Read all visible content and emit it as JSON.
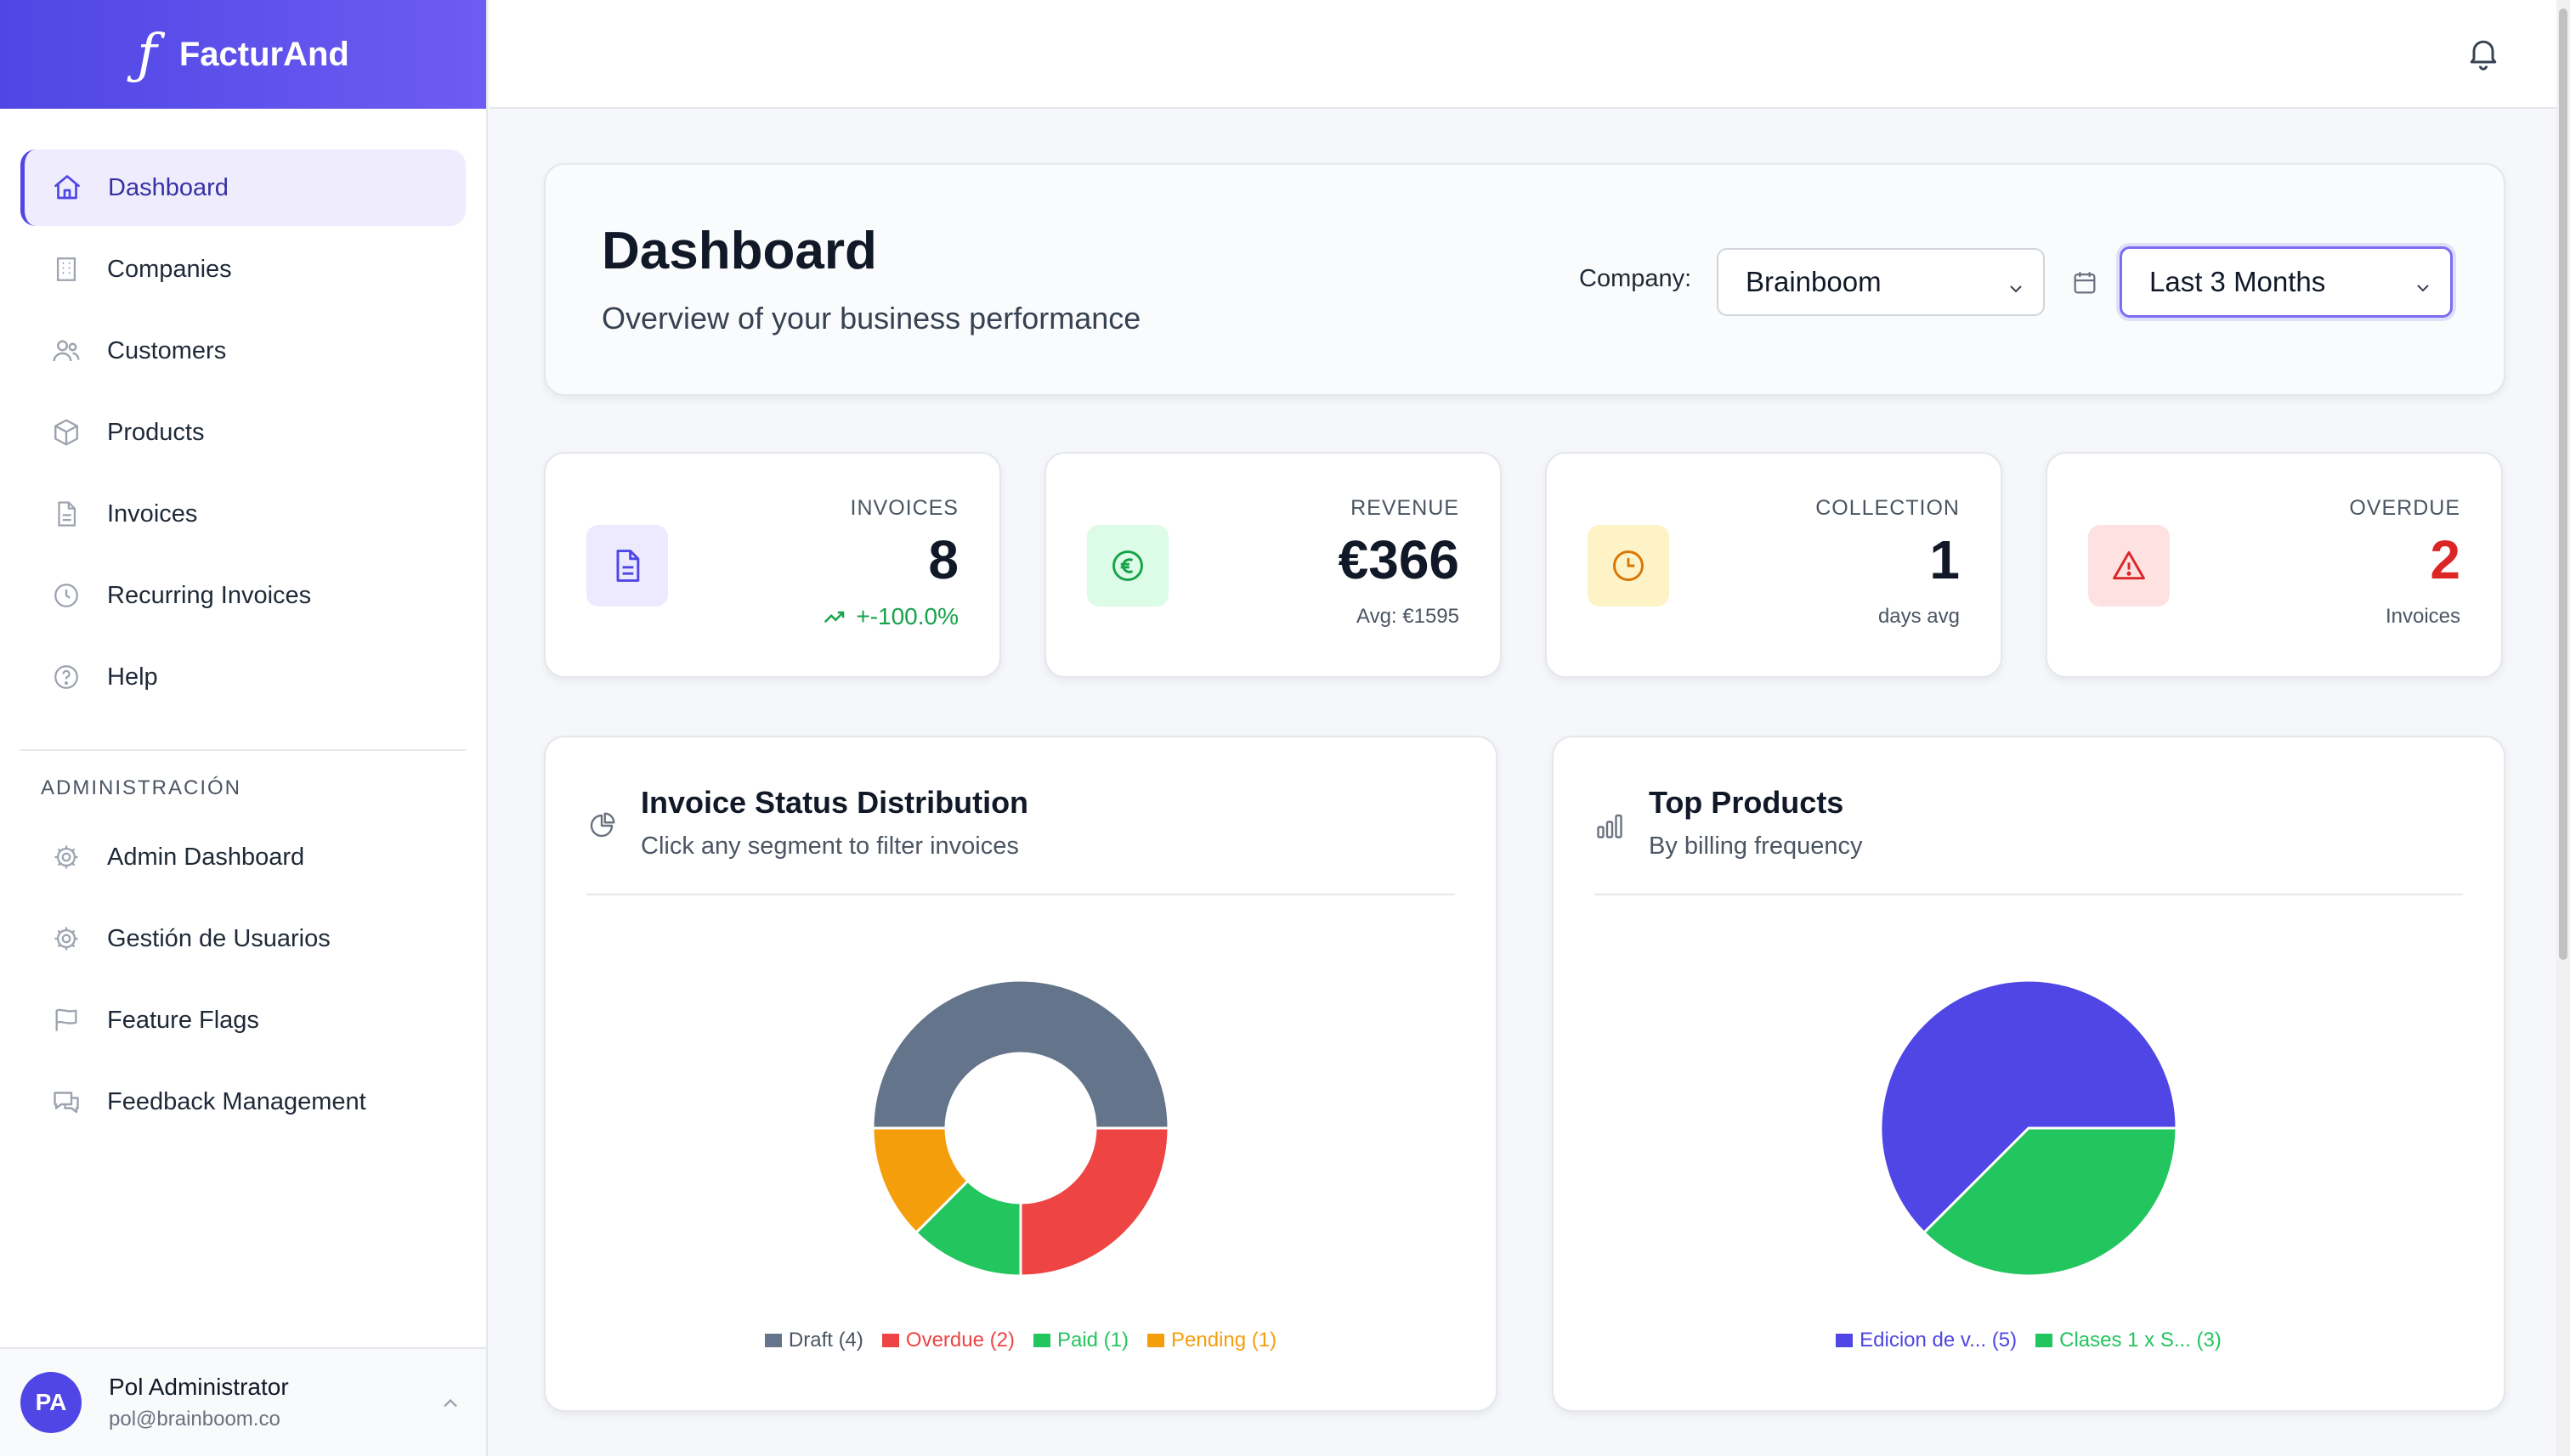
{
  "app": {
    "name": "FacturAnd"
  },
  "sidebar": {
    "items": [
      {
        "label": "Dashboard",
        "icon": "home-icon",
        "active": true
      },
      {
        "label": "Companies",
        "icon": "building-icon"
      },
      {
        "label": "Customers",
        "icon": "users-icon"
      },
      {
        "label": "Products",
        "icon": "box-icon"
      },
      {
        "label": "Invoices",
        "icon": "file-icon"
      },
      {
        "label": "Recurring Invoices",
        "icon": "clock-icon"
      },
      {
        "label": "Help",
        "icon": "help-circle-icon"
      }
    ],
    "admin_section": "ADMINISTRACIÓN",
    "admin_items": [
      {
        "label": "Admin Dashboard",
        "icon": "gear-icon"
      },
      {
        "label": "Gestión de Usuarios",
        "icon": "gear-icon"
      },
      {
        "label": "Feature Flags",
        "icon": "flag-icon"
      },
      {
        "label": "Feedback Management",
        "icon": "chat-icon"
      }
    ],
    "user": {
      "initials": "PA",
      "name": "Pol Administrator",
      "email": "pol@brainboom.co"
    }
  },
  "header": {
    "title": "Dashboard",
    "subtitle": "Overview of your business performance",
    "company_label": "Company:",
    "company_value": "Brainboom",
    "period_value": "Last 3 Months"
  },
  "stats": [
    {
      "label": "INVOICES",
      "value": "8",
      "sub": "+-100.0%",
      "icon": "file-icon",
      "color": "#4f46e5",
      "bg": "#ede9fe"
    },
    {
      "label": "REVENUE",
      "value": "€366",
      "sub": "Avg: €1595",
      "icon": "euro-icon",
      "color": "#16a34a",
      "bg": "#dcfce7"
    },
    {
      "label": "COLLECTION",
      "value": "1",
      "sub": "days avg",
      "icon": "clock-icon",
      "color": "#d97706",
      "bg": "#fef3c7"
    },
    {
      "label": "OVERDUE",
      "value": "2",
      "sub": "Invoices",
      "icon": "alert-triangle-icon",
      "color": "#dc2626",
      "bg": "#fee2e2"
    }
  ],
  "status_chart": {
    "title": "Invoice Status Distribution",
    "subtitle": "Click any segment to filter invoices",
    "icon": "pie-chart-icon"
  },
  "products_chart": {
    "title": "Top Products",
    "subtitle": "By billing frequency",
    "icon": "bar-chart-icon"
  },
  "chart_data": [
    {
      "type": "pie",
      "variant": "donut",
      "categories": [
        "Draft",
        "Overdue",
        "Paid",
        "Pending"
      ],
      "values": [
        4,
        2,
        1,
        1
      ],
      "legend_labels": [
        "Draft (4)",
        "Overdue (2)",
        "Paid (1)",
        "Pending (1)"
      ],
      "colors": [
        "#64748b",
        "#ef4444",
        "#22c55e",
        "#f59e0b"
      ],
      "legend": "bottom"
    },
    {
      "type": "pie",
      "categories": [
        "Edicion de v...",
        "Clases 1 x S..."
      ],
      "values": [
        5,
        3
      ],
      "legend_labels": [
        "Edicion de v... (5)",
        "Clases 1 x S... (3)"
      ],
      "colors": [
        "#4f46e5",
        "#22c55e"
      ],
      "legend": "bottom"
    }
  ]
}
